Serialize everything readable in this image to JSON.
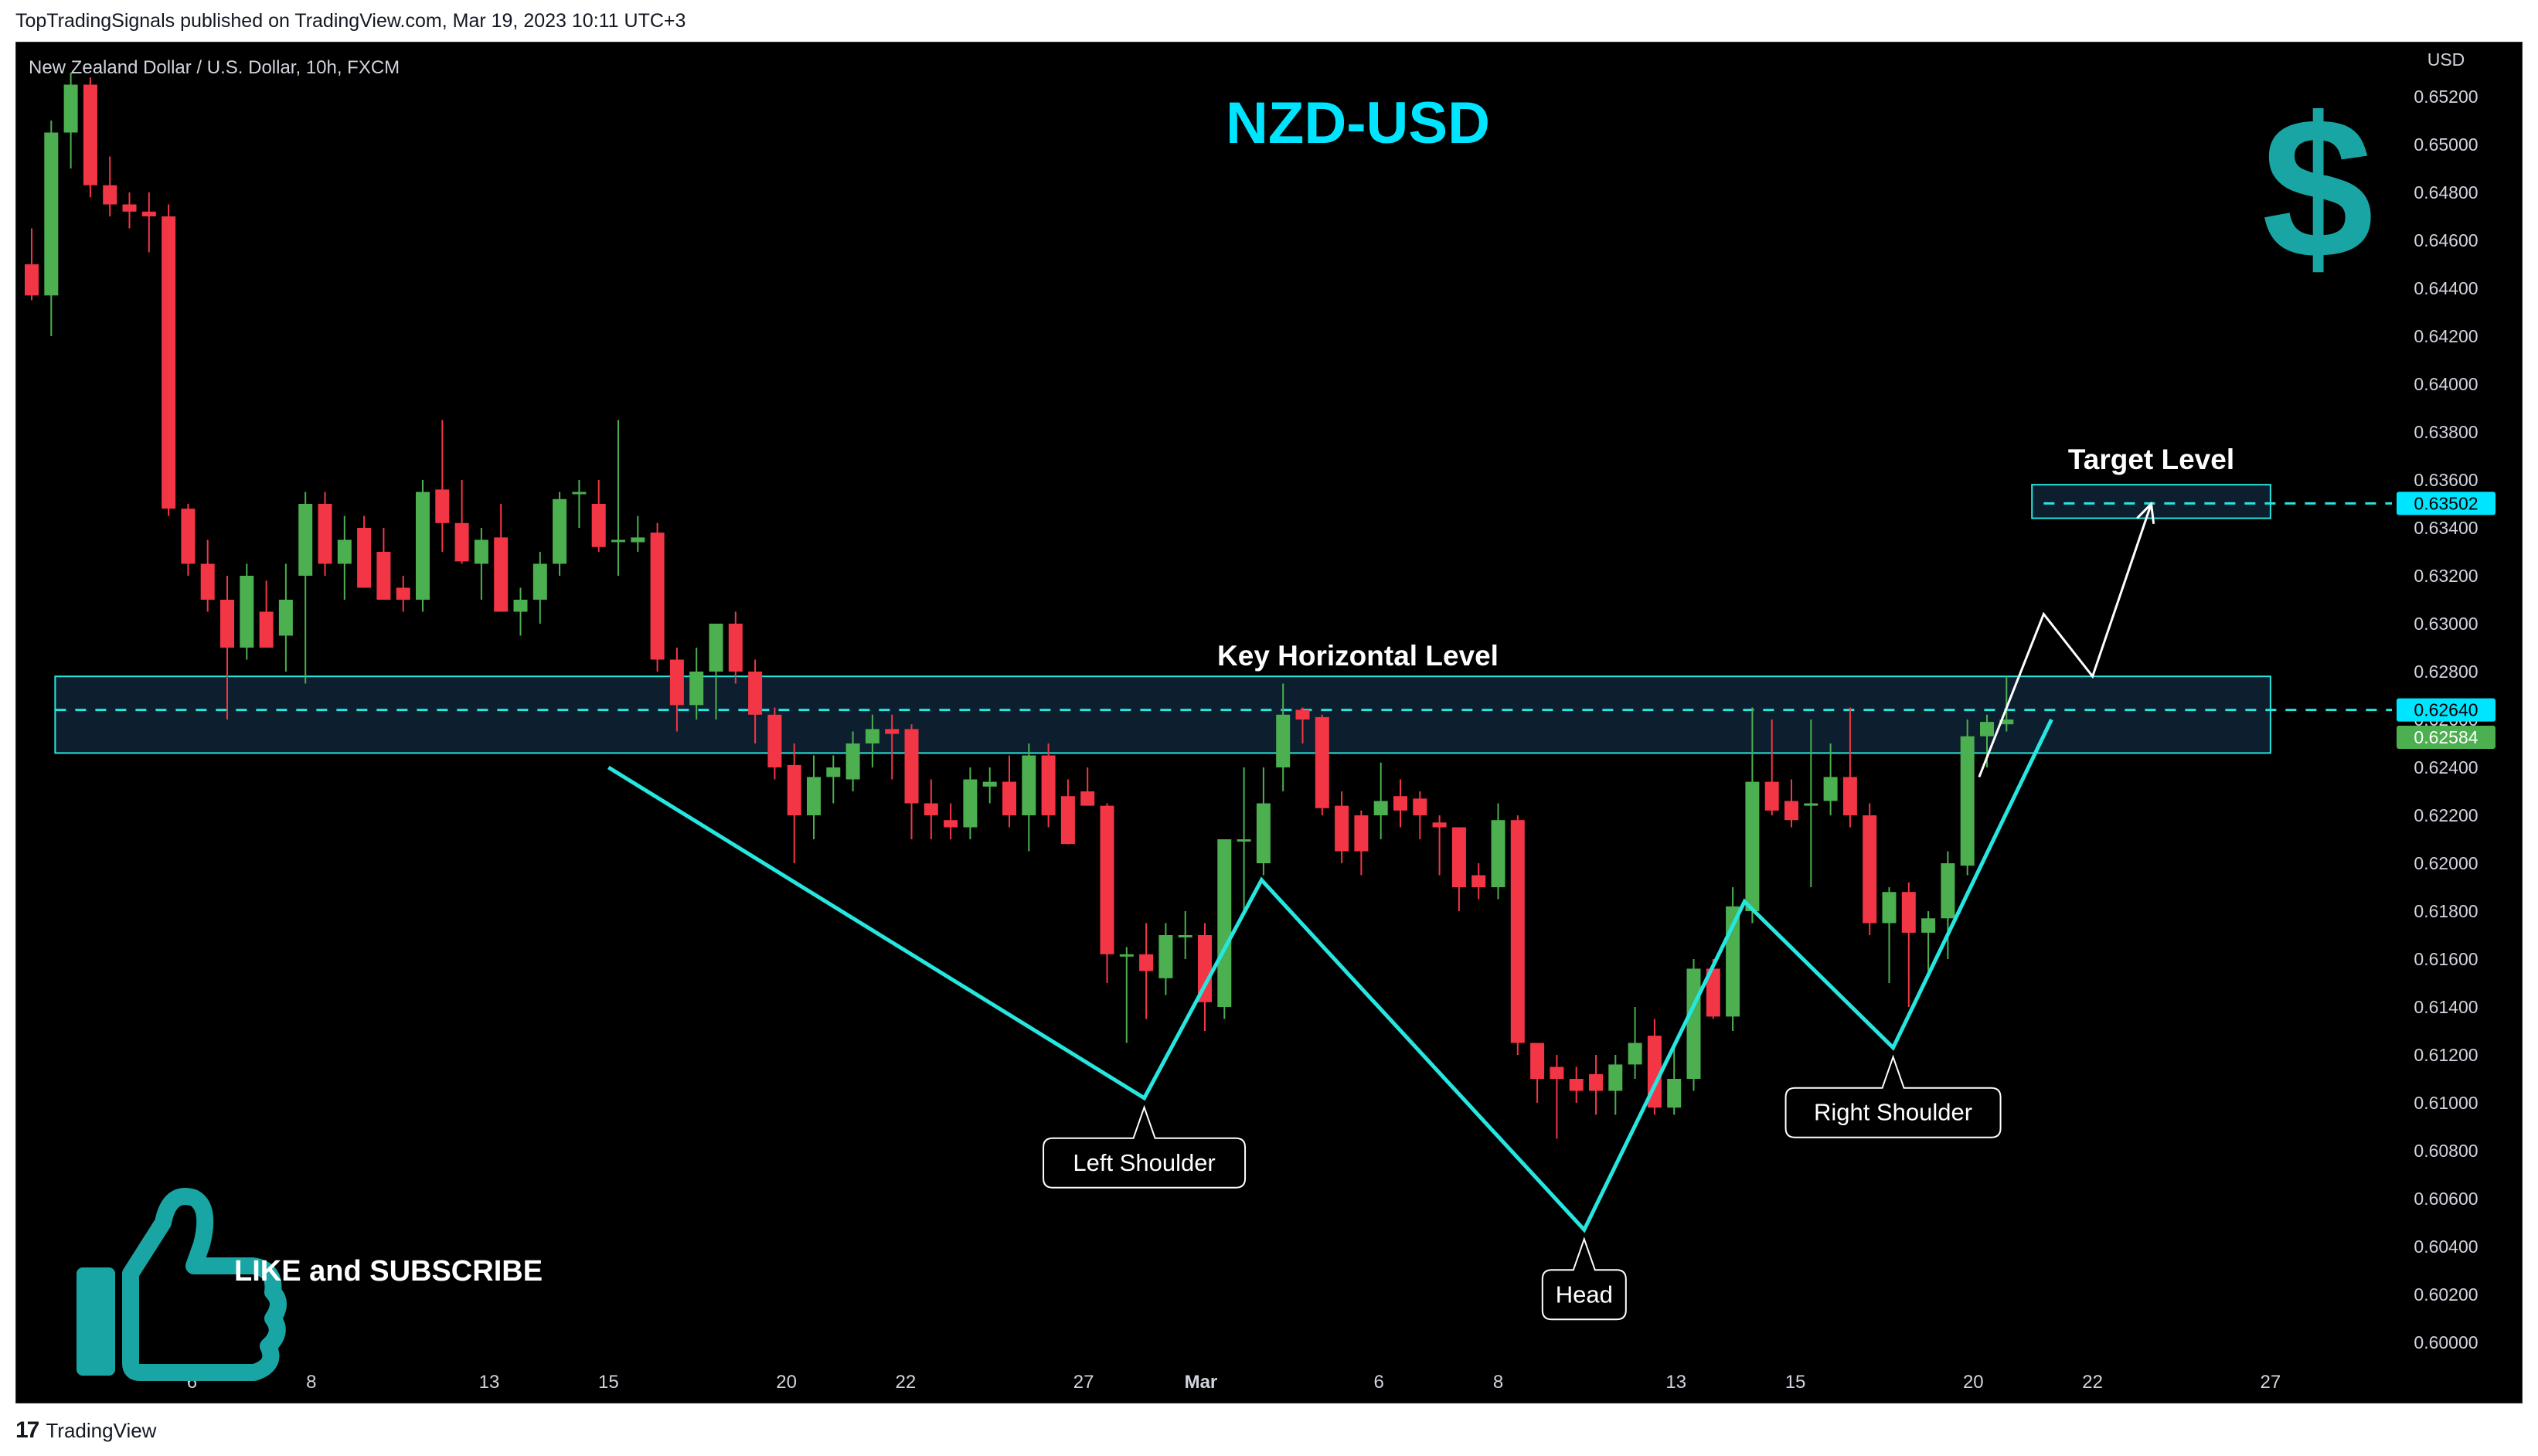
{
  "header": {
    "publisher_line": "TopTradingSignals published on TradingView.com, Mar 19, 2023 10:11 UTC+3"
  },
  "chart_header": {
    "symbol": "New Zealand Dollar / U.S. Dollar, 10h, FXCM",
    "currency": "USD",
    "title": "NZD-USD"
  },
  "annotations": {
    "key_level_label": "Key Horizontal Level",
    "target_label": "Target Level",
    "left_shoulder": "Left Shoulder",
    "head": "Head",
    "right_shoulder": "Right Shoulder",
    "like_subscribe": "LIKE and SUBSCRIBE"
  },
  "icons": {
    "dollar": "dollar-sign-icon",
    "thumbs_up": "thumbs-up-icon",
    "tradingview": "tradingview-logo-icon"
  },
  "colors": {
    "background": "#000000",
    "up": "#4caf50",
    "down": "#f23645",
    "accent": "#26e7e0",
    "title": "#00e5ff",
    "text": "#ffffff",
    "axis_text": "#d1d4dc"
  },
  "price_badges": [
    {
      "label": "0.63502",
      "value": 0.63502,
      "bg": "#00e5ff",
      "fg": "#000000"
    },
    {
      "label": "0.62640",
      "value": 0.6264,
      "bg": "#00e5ff",
      "fg": "#000000"
    },
    {
      "label": "0.62584",
      "value": 0.62584,
      "bg": "#4caf50",
      "fg": "#ffffff"
    }
  ],
  "chart_data": {
    "type": "candlestick",
    "title": "NZD-USD",
    "xlabel": "",
    "ylabel": "USD",
    "ylim": [
      0.6,
      0.6528
    ],
    "y_ticks": [
      0.6,
      0.602,
      0.604,
      0.606,
      0.608,
      0.61,
      0.612,
      0.614,
      0.616,
      0.618,
      0.62,
      0.622,
      0.624,
      0.626,
      0.628,
      0.63,
      0.632,
      0.634,
      0.636,
      0.638,
      0.64,
      0.642,
      0.644,
      0.646,
      0.648,
      0.65,
      0.652
    ],
    "y_tick_labels": [
      "0.60000",
      "0.60200",
      "0.60400",
      "0.60600",
      "0.60800",
      "0.61000",
      "0.61200",
      "0.61400",
      "0.61600",
      "0.61800",
      "0.62000",
      "0.62200",
      "0.62400",
      "0.62600",
      "0.62800",
      "0.63000",
      "0.63200",
      "0.63400",
      "0.63600",
      "0.63800",
      "0.64000",
      "0.64200",
      "0.64400",
      "0.64600",
      "0.64800",
      "0.65000",
      "0.65200"
    ],
    "x_ticks": [
      {
        "label": "6",
        "index": 8.2
      },
      {
        "label": "8",
        "index": 14.3
      },
      {
        "label": "13",
        "index": 23.4
      },
      {
        "label": "15",
        "index": 29.5
      },
      {
        "label": "20",
        "index": 38.6
      },
      {
        "label": "22",
        "index": 44.7
      },
      {
        "label": "27",
        "index": 53.8
      },
      {
        "label": "Mar",
        "index": 59.8
      },
      {
        "label": "6",
        "index": 68.9
      },
      {
        "label": "8",
        "index": 75
      },
      {
        "label": "13",
        "index": 84.1
      },
      {
        "label": "15",
        "index": 90.2
      },
      {
        "label": "20",
        "index": 99.3
      },
      {
        "label": "22",
        "index": 105.4
      },
      {
        "label": "27",
        "index": 114.5
      }
    ],
    "candles": [
      [
        0.645,
        0.6465,
        0.6435,
        0.6437
      ],
      [
        0.6437,
        0.651,
        0.642,
        0.6505
      ],
      [
        0.6505,
        0.653,
        0.649,
        0.6525
      ],
      [
        0.6525,
        0.6528,
        0.6478,
        0.6483
      ],
      [
        0.6483,
        0.6495,
        0.647,
        0.6475
      ],
      [
        0.6475,
        0.648,
        0.6465,
        0.6472
      ],
      [
        0.6472,
        0.648,
        0.6455,
        0.647
      ],
      [
        0.647,
        0.6475,
        0.6345,
        0.6348
      ],
      [
        0.6348,
        0.635,
        0.632,
        0.6325
      ],
      [
        0.6325,
        0.6335,
        0.6305,
        0.631
      ],
      [
        0.631,
        0.632,
        0.626,
        0.629
      ],
      [
        0.629,
        0.6325,
        0.6285,
        0.632
      ],
      [
        0.6305,
        0.6318,
        0.629,
        0.629
      ],
      [
        0.6295,
        0.6325,
        0.628,
        0.631
      ],
      [
        0.632,
        0.6355,
        0.6275,
        0.635
      ],
      [
        0.635,
        0.6355,
        0.632,
        0.6325
      ],
      [
        0.6325,
        0.6345,
        0.631,
        0.6335
      ],
      [
        0.634,
        0.6345,
        0.6315,
        0.6315
      ],
      [
        0.633,
        0.634,
        0.631,
        0.631
      ],
      [
        0.6315,
        0.632,
        0.6305,
        0.631
      ],
      [
        0.631,
        0.636,
        0.6305,
        0.6355
      ],
      [
        0.6356,
        0.6385,
        0.633,
        0.6342
      ],
      [
        0.6342,
        0.636,
        0.6325,
        0.6326
      ],
      [
        0.6325,
        0.634,
        0.631,
        0.6335
      ],
      [
        0.6336,
        0.635,
        0.6305,
        0.6305
      ],
      [
        0.6305,
        0.6315,
        0.6295,
        0.631
      ],
      [
        0.631,
        0.633,
        0.63,
        0.6325
      ],
      [
        0.6325,
        0.6355,
        0.632,
        0.6352
      ],
      [
        0.6355,
        0.636,
        0.634,
        0.6355
      ],
      [
        0.635,
        0.636,
        0.633,
        0.6332
      ],
      [
        0.6335,
        0.6385,
        0.632,
        0.6335
      ],
      [
        0.6334,
        0.6345,
        0.633,
        0.6336
      ],
      [
        0.6338,
        0.6342,
        0.628,
        0.6285
      ],
      [
        0.6285,
        0.629,
        0.6255,
        0.6266
      ],
      [
        0.6266,
        0.629,
        0.626,
        0.628
      ],
      [
        0.628,
        0.6295,
        0.626,
        0.63
      ],
      [
        0.63,
        0.6305,
        0.6275,
        0.628
      ],
      [
        0.628,
        0.6285,
        0.625,
        0.6262
      ],
      [
        0.6262,
        0.6265,
        0.6235,
        0.624
      ],
      [
        0.6241,
        0.625,
        0.62,
        0.622
      ],
      [
        0.622,
        0.6245,
        0.621,
        0.6236
      ],
      [
        0.6236,
        0.6245,
        0.6225,
        0.624
      ],
      [
        0.6235,
        0.6255,
        0.623,
        0.625
      ],
      [
        0.625,
        0.6262,
        0.624,
        0.6256
      ],
      [
        0.6256,
        0.6262,
        0.6235,
        0.6254
      ],
      [
        0.6256,
        0.6258,
        0.621,
        0.6225
      ],
      [
        0.6225,
        0.6235,
        0.621,
        0.622
      ],
      [
        0.6218,
        0.6225,
        0.621,
        0.6215
      ],
      [
        0.6215,
        0.624,
        0.621,
        0.6235
      ],
      [
        0.6232,
        0.624,
        0.6225,
        0.6234
      ],
      [
        0.6234,
        0.6245,
        0.6215,
        0.622
      ],
      [
        0.622,
        0.625,
        0.6205,
        0.6245
      ],
      [
        0.6245,
        0.625,
        0.6215,
        0.622
      ],
      [
        0.6228,
        0.6235,
        0.6208,
        0.6208
      ],
      [
        0.623,
        0.624,
        0.6225,
        0.6224
      ],
      [
        0.6224,
        0.6225,
        0.615,
        0.6162
      ],
      [
        0.6162,
        0.6165,
        0.6125,
        0.6162
      ],
      [
        0.6162,
        0.6175,
        0.6135,
        0.6155
      ],
      [
        0.6152,
        0.6175,
        0.6145,
        0.617
      ],
      [
        0.617,
        0.618,
        0.616,
        0.617
      ],
      [
        0.617,
        0.6175,
        0.613,
        0.6142
      ],
      [
        0.614,
        0.621,
        0.6135,
        0.621
      ],
      [
        0.621,
        0.624,
        0.618,
        0.621
      ],
      [
        0.62,
        0.624,
        0.6195,
        0.6225
      ],
      [
        0.624,
        0.6275,
        0.623,
        0.6262
      ],
      [
        0.6264,
        0.6265,
        0.625,
        0.626
      ],
      [
        0.6261,
        0.6262,
        0.622,
        0.6223
      ],
      [
        0.6224,
        0.623,
        0.62,
        0.6205
      ],
      [
        0.622,
        0.6222,
        0.6195,
        0.6205
      ],
      [
        0.622,
        0.6242,
        0.621,
        0.6226
      ],
      [
        0.6228,
        0.6235,
        0.6215,
        0.6222
      ],
      [
        0.6227,
        0.623,
        0.621,
        0.622
      ],
      [
        0.6217,
        0.622,
        0.6195,
        0.6215
      ],
      [
        0.6215,
        0.6215,
        0.618,
        0.619
      ],
      [
        0.6195,
        0.62,
        0.6185,
        0.619
      ],
      [
        0.619,
        0.6225,
        0.6185,
        0.6218
      ],
      [
        0.6218,
        0.622,
        0.612,
        0.6125
      ],
      [
        0.6125,
        0.6125,
        0.61,
        0.611
      ],
      [
        0.6115,
        0.612,
        0.6085,
        0.611
      ],
      [
        0.611,
        0.6115,
        0.61,
        0.6105
      ],
      [
        0.6112,
        0.612,
        0.6095,
        0.6105
      ],
      [
        0.6105,
        0.612,
        0.6095,
        0.6116
      ],
      [
        0.6116,
        0.614,
        0.611,
        0.6125
      ],
      [
        0.6128,
        0.6135,
        0.6095,
        0.6098
      ],
      [
        0.6098,
        0.6125,
        0.6095,
        0.611
      ],
      [
        0.611,
        0.616,
        0.6105,
        0.6156
      ],
      [
        0.6156,
        0.616,
        0.6135,
        0.6136
      ],
      [
        0.6136,
        0.619,
        0.613,
        0.6182
      ],
      [
        0.618,
        0.6265,
        0.6175,
        0.6234
      ],
      [
        0.6234,
        0.626,
        0.622,
        0.6222
      ],
      [
        0.6226,
        0.6235,
        0.6215,
        0.6218
      ],
      [
        0.6224,
        0.626,
        0.619,
        0.6225
      ],
      [
        0.6226,
        0.625,
        0.622,
        0.6236
      ],
      [
        0.6236,
        0.6265,
        0.6215,
        0.622
      ],
      [
        0.622,
        0.6225,
        0.617,
        0.6175
      ],
      [
        0.6175,
        0.619,
        0.615,
        0.6188
      ],
      [
        0.6188,
        0.6192,
        0.614,
        0.6171
      ],
      [
        0.6171,
        0.618,
        0.6155,
        0.6177
      ],
      [
        0.6177,
        0.6205,
        0.616,
        0.62
      ],
      [
        0.6199,
        0.626,
        0.6195,
        0.6253
      ],
      [
        0.6253,
        0.6262,
        0.624,
        0.6259
      ],
      [
        0.6258,
        0.6278,
        0.6255,
        0.626
      ]
    ],
    "key_level": {
      "value": 0.6264,
      "zone": [
        0.6246,
        0.6278
      ],
      "label": "Key Horizontal Level"
    },
    "target_level": {
      "value": 0.63502,
      "zone": [
        0.6344,
        0.6358
      ],
      "label": "Target Level"
    },
    "pattern": {
      "name": "Inverse Head and Shoulders",
      "points": [
        {
          "index": 29.5,
          "price": 0.624
        },
        {
          "index": 56.9,
          "price": 0.6102
        },
        {
          "index": 62.9,
          "price": 0.6193
        },
        {
          "index": 79.4,
          "price": 0.6047
        },
        {
          "index": 87.6,
          "price": 0.6184
        },
        {
          "index": 95.2,
          "price": 0.6123
        },
        {
          "index": 103.3,
          "price": 0.626
        }
      ],
      "labels": [
        {
          "text": "Left Shoulder",
          "index": 56.9,
          "price": 0.6102
        },
        {
          "text": "Head",
          "index": 79.4,
          "price": 0.6047
        },
        {
          "text": "Right Shoulder",
          "index": 95.2,
          "price": 0.6123
        }
      ]
    },
    "projection": {
      "points": [
        {
          "index": 99.6,
          "price": 0.6236
        },
        {
          "index": 102.9,
          "price": 0.6304
        },
        {
          "index": 105.4,
          "price": 0.6278
        },
        {
          "index": 108.4,
          "price": 0.635
        }
      ]
    }
  }
}
